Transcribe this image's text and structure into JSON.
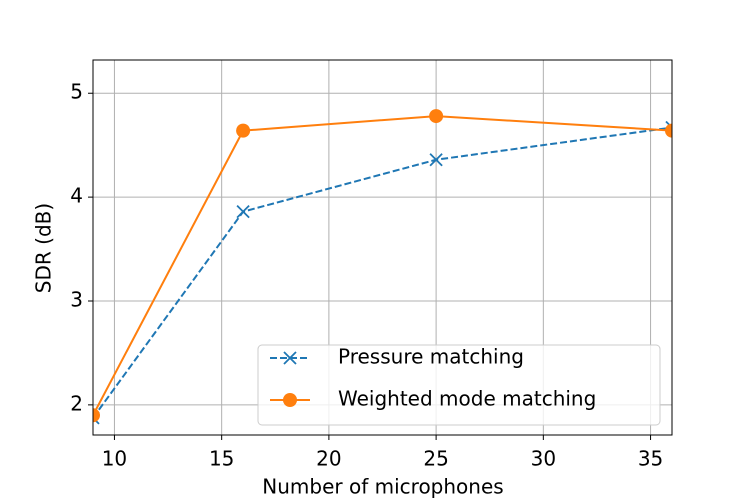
{
  "chart_data": {
    "type": "line",
    "x_label": "Number of microphones",
    "y_label": "SDR (dB)",
    "x": [
      9,
      16,
      25,
      36
    ],
    "series": [
      {
        "name": "Pressure matching",
        "color": "#1f77b4",
        "marker": "x",
        "linestyle": "dashed",
        "values": [
          1.875,
          3.86,
          4.36,
          4.67
        ]
      },
      {
        "name": "Weighted mode matching",
        "color": "#ff7f0e",
        "marker": "o",
        "linestyle": "solid",
        "values": [
          1.9,
          4.64,
          4.78,
          4.64
        ]
      }
    ],
    "xlim": [
      9,
      36
    ],
    "ylim": [
      1.71,
      5.32
    ],
    "xticks": [
      10,
      15,
      20,
      25,
      30,
      35
    ],
    "yticks": [
      2,
      3,
      4,
      5
    ],
    "grid": true,
    "legend": "lower right"
  }
}
